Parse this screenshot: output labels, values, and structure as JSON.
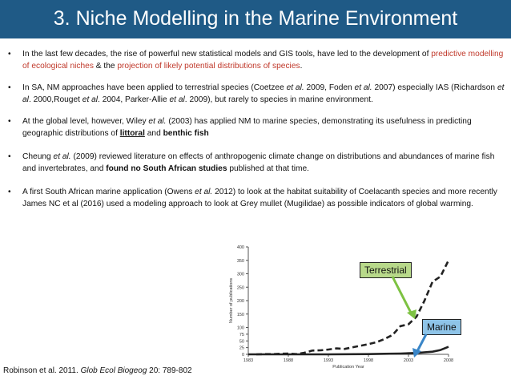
{
  "title": "3. Niche Modelling in the Marine Environment",
  "bullets": [
    {
      "parts": [
        {
          "t": "In the last few decades, the rise of powerful new statistical models and GIS tools, have led to the development of "
        },
        {
          "t": "predictive modelling of ecological niches",
          "s": "red"
        },
        {
          "t": " &  the "
        },
        {
          "t": "projection of likely potential distributions of species",
          "s": "red"
        },
        {
          "t": "."
        }
      ]
    },
    {
      "parts": [
        {
          "t": "In SA, NM approaches have been applied to terrestrial species (Coetzee "
        },
        {
          "t": "et al.",
          "s": "i"
        },
        {
          "t": " 2009, Foden "
        },
        {
          "t": "et al.",
          "s": "i"
        },
        {
          "t": " 2007) especially IAS (Richardson "
        },
        {
          "t": "et al",
          "s": "i"
        },
        {
          "t": ". 2000,Rouget "
        },
        {
          "t": "et al",
          "s": "i"
        },
        {
          "t": ". 2004, Parker-Allie "
        },
        {
          "t": "et al",
          "s": "i"
        },
        {
          "t": ". 2009), but rarely to species in marine environment."
        }
      ]
    },
    {
      "parts": [
        {
          "t": "At the global level, however, Wiley "
        },
        {
          "t": "et al.",
          "s": "i"
        },
        {
          "t": " (2003) has applied NM to marine species, demonstrating its usefulness in predicting geographic distributions of "
        },
        {
          "t": "littoral",
          "s": "bu"
        },
        {
          "t": " and "
        },
        {
          "t": "benthic fish",
          "s": "b"
        }
      ]
    },
    {
      "parts": [
        {
          "t": "Cheung "
        },
        {
          "t": "et al.",
          "s": "i"
        },
        {
          "t": " (2009) reviewed literature on effects of anthropogenic climate change on distributions and abundances of marine fish and invertebrates, and "
        },
        {
          "t": "found no South African studies",
          "s": "b"
        },
        {
          "t": " published at that time."
        }
      ]
    },
    {
      "parts": [
        {
          "t": "A first South African marine application (Owens "
        },
        {
          "t": "et al.",
          "s": "i"
        },
        {
          "t": " 2012) to look at the habitat suitability of Coelacanth species and more recently James NC et al (2016) used a modeling approach to look at Grey mullet (Mugilidae) as possible indicators of global warming."
        }
      ]
    }
  ],
  "bullet_symbol": "•",
  "citation": {
    "prefix": "Robinson et al. 2011. ",
    "journal": "Glob Ecol Biogeog",
    "suffix": " 20: 789-802"
  },
  "callouts": {
    "terrestrial": "Terrestrial",
    "marine": "Marine"
  },
  "colors": {
    "title_bg": "#1f5a86",
    "red_text": "#c0392b",
    "terrestrial_bg": "#b8d98a",
    "marine_bg": "#8ec4e8",
    "terrestrial_arrow": "#7dc242",
    "marine_arrow": "#3a86c8"
  },
  "chart_data": {
    "type": "line",
    "ylabel": "Number of publications",
    "xlabel": "Publication Year",
    "x_ticks": [
      1983,
      1988,
      1993,
      1998,
      2003,
      2008
    ],
    "y_ticks": [
      0,
      25,
      50,
      75,
      100,
      150,
      200,
      250,
      300,
      350,
      400
    ],
    "xlim": [
      1983,
      2008
    ],
    "series": [
      {
        "name": "Terrestrial",
        "style": "dashed",
        "x": [
          1984,
          1985,
          1986,
          1987,
          1988,
          1989,
          1990,
          1991,
          1992,
          1993,
          1994,
          1995,
          1996,
          1997,
          1998,
          1999,
          2000,
          2001,
          2002,
          2003,
          2004,
          2005,
          2006,
          2007,
          2008
        ],
        "y": [
          0,
          1,
          1,
          2,
          3,
          1,
          6,
          14,
          15,
          18,
          22,
          20,
          26,
          32,
          38,
          45,
          57,
          72,
          105,
          112,
          140,
          200,
          270,
          290,
          350
        ]
      },
      {
        "name": "Marine",
        "style": "solid",
        "x": [
          1983,
          1988,
          1993,
          1998,
          2000,
          2002,
          2004,
          2006,
          2007,
          2008
        ],
        "y": [
          0,
          0,
          0,
          1,
          2,
          3,
          5,
          10,
          16,
          28
        ]
      }
    ]
  }
}
